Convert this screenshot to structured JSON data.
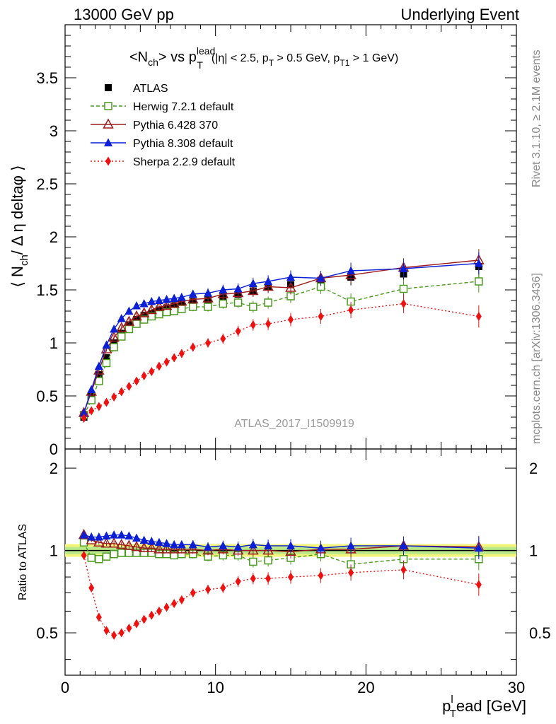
{
  "header": {
    "left": "13000 GeV pp",
    "right": "Underlying Event"
  },
  "side_labels": {
    "rivet": "Rivet 3.1.10, ≥ 2.1M events",
    "mcplots": "mcplots.cern.ch [arXiv:1306.3436]"
  },
  "watermark": "ATLAS_2017_I1509919",
  "title": {
    "main_pre": "<N",
    "main_sub": "ch",
    "main_post": "> vs p",
    "main_p_sub": "T",
    "main_p_sup": "lead",
    "cuts_a": "(|η| < 2.5, p",
    "cuts_a_sub": "T",
    "cuts_b": " > 0.5 GeV, p",
    "cuts_b_sub": "T1",
    "cuts_c": " > 1 GeV)"
  },
  "y_label_main": {
    "pre": "⟨ N",
    "sub": "ch",
    "post": "/ Δ η deltaφ ⟩"
  },
  "y_label_ratio": "Ratio to ATLAS",
  "x_label": {
    "p": "p",
    "sub": "T",
    "sup": "l",
    "rest": "ead [GeV]"
  },
  "chart_data": [
    {
      "type": "scatter",
      "panel": "main",
      "xlim": [
        0,
        30
      ],
      "ylim": [
        0,
        4
      ],
      "x_ticks": [
        "0",
        "10",
        "20",
        "30"
      ],
      "y_ticks": [
        "0",
        "0.5",
        "1",
        "1.5",
        "2",
        "2.5",
        "3",
        "3.5"
      ],
      "x": [
        1.25,
        1.75,
        2.25,
        2.75,
        3.25,
        3.75,
        4.25,
        4.75,
        5.25,
        5.75,
        6.25,
        6.75,
        7.25,
        7.75,
        8.5,
        9.5,
        10.5,
        11.5,
        12.5,
        13.5,
        15,
        17,
        19,
        22.5,
        27.5
      ],
      "series": [
        {
          "name": "ATLAS",
          "color": "#000000",
          "marker": "square-filled",
          "line": "none",
          "values": [
            0.3,
            0.5,
            0.7,
            0.86,
            1.0,
            1.09,
            1.17,
            1.22,
            1.26,
            1.28,
            1.31,
            1.33,
            1.35,
            1.37,
            1.39,
            1.41,
            1.44,
            1.46,
            1.49,
            1.53,
            1.55,
            1.59,
            1.62,
            1.65,
            1.72
          ]
        },
        {
          "name": "Herwig 7.2.1 default",
          "color": "#4a9a1e",
          "marker": "square-open",
          "line": "dashed",
          "values": [
            0.32,
            0.46,
            0.64,
            0.81,
            0.96,
            1.06,
            1.13,
            1.18,
            1.22,
            1.25,
            1.27,
            1.29,
            1.3,
            1.32,
            1.34,
            1.34,
            1.37,
            1.38,
            1.34,
            1.38,
            1.44,
            1.53,
            1.39,
            1.51,
            1.58
          ]
        },
        {
          "name": "Pythia 6.428 370",
          "color": "#9e1b1b",
          "marker": "triangle-open",
          "line": "solid",
          "values": [
            0.34,
            0.54,
            0.74,
            0.94,
            1.05,
            1.14,
            1.2,
            1.25,
            1.28,
            1.31,
            1.34,
            1.35,
            1.37,
            1.39,
            1.41,
            1.42,
            1.46,
            1.47,
            1.49,
            1.53,
            1.52,
            1.61,
            1.64,
            1.71,
            1.78
          ]
        },
        {
          "name": "Pythia 8.308 default",
          "color": "#0a1fd6",
          "marker": "triangle-filled",
          "line": "solid",
          "values": [
            0.34,
            0.56,
            0.78,
            0.98,
            1.13,
            1.23,
            1.3,
            1.35,
            1.37,
            1.39,
            1.4,
            1.41,
            1.42,
            1.43,
            1.46,
            1.47,
            1.5,
            1.51,
            1.56,
            1.58,
            1.62,
            1.61,
            1.68,
            1.7,
            1.75
          ]
        },
        {
          "name": "Sherpa 2.2.9 default",
          "color": "#ee1111",
          "marker": "diamond-filled",
          "line": "dotted",
          "values": [
            0.29,
            0.36,
            0.4,
            0.44,
            0.49,
            0.54,
            0.59,
            0.64,
            0.69,
            0.73,
            0.78,
            0.82,
            0.86,
            0.9,
            0.96,
            1.0,
            1.04,
            1.11,
            1.17,
            1.18,
            1.22,
            1.25,
            1.31,
            1.37,
            1.25
          ]
        }
      ]
    },
    {
      "type": "scatter",
      "panel": "ratio",
      "xlim": [
        0,
        30
      ],
      "ylim": [
        0.35,
        2.35
      ],
      "x_ticks": [
        "0",
        "10",
        "20",
        "30"
      ],
      "y_ticks": [
        "0.5",
        "1",
        "2"
      ],
      "y_log": true,
      "x": [
        1.25,
        1.75,
        2.25,
        2.75,
        3.25,
        3.75,
        4.25,
        4.75,
        5.25,
        5.75,
        6.25,
        6.75,
        7.25,
        7.75,
        8.5,
        9.5,
        10.5,
        11.5,
        12.5,
        13.5,
        15,
        17,
        19,
        22.5,
        27.5
      ],
      "series": [
        {
          "name": "Herwig 7.2.1 default",
          "values": [
            1.07,
            0.94,
            0.93,
            0.95,
            0.97,
            0.98,
            0.98,
            0.98,
            0.98,
            0.98,
            0.97,
            0.97,
            0.96,
            0.97,
            0.97,
            0.95,
            0.96,
            0.96,
            0.91,
            0.92,
            0.94,
            0.97,
            0.89,
            0.93,
            0.93
          ]
        },
        {
          "name": "Pythia 6.428 370",
          "values": [
            1.14,
            1.09,
            1.07,
            1.06,
            1.06,
            1.05,
            1.04,
            1.03,
            1.02,
            1.02,
            1.01,
            1.01,
            1.01,
            1.01,
            1.01,
            1.0,
            1.01,
            1.0,
            1.0,
            1.0,
            0.99,
            1.01,
            1.01,
            1.04,
            1.03
          ]
        },
        {
          "name": "Pythia 8.308 default",
          "values": [
            1.14,
            1.12,
            1.12,
            1.13,
            1.14,
            1.14,
            1.13,
            1.11,
            1.09,
            1.08,
            1.07,
            1.06,
            1.05,
            1.05,
            1.05,
            1.03,
            1.04,
            1.03,
            1.05,
            1.04,
            1.04,
            1.02,
            1.04,
            1.04,
            1.02
          ]
        },
        {
          "name": "Sherpa 2.2.9 default",
          "values": [
            0.96,
            0.73,
            0.57,
            0.51,
            0.49,
            0.5,
            0.52,
            0.54,
            0.56,
            0.58,
            0.6,
            0.62,
            0.64,
            0.66,
            0.7,
            0.72,
            0.73,
            0.77,
            0.79,
            0.79,
            0.8,
            0.81,
            0.83,
            0.85,
            0.75
          ]
        }
      ]
    }
  ]
}
